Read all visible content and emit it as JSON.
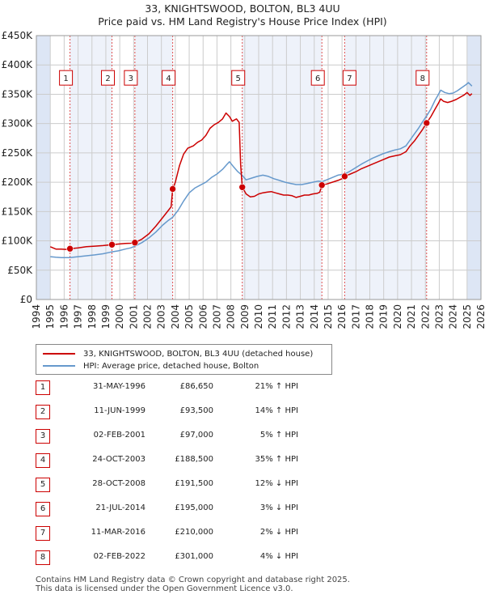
{
  "chart_data": {
    "type": "line",
    "title": "33, KNIGHTSWOOD, BOLTON, BL3 4UU",
    "subtitle": "Price paid vs. HM Land Registry's House Price Index (HPI)",
    "xlim": [
      1994,
      2026
    ],
    "ylim": [
      0,
      450000
    ],
    "x_ticks": [
      "1994",
      "1995",
      "1996",
      "1997",
      "1998",
      "1999",
      "2000",
      "2001",
      "2002",
      "2003",
      "2004",
      "2005",
      "2006",
      "2007",
      "2008",
      "2009",
      "2010",
      "2011",
      "2012",
      "2013",
      "2014",
      "2015",
      "2016",
      "2017",
      "2018",
      "2019",
      "2020",
      "2021",
      "2022",
      "2023",
      "2024",
      "2025",
      "2026"
    ],
    "y_ticks": [
      {
        "value": 0,
        "label": "£0"
      },
      {
        "value": 50000,
        "label": "£50K"
      },
      {
        "value": 100000,
        "label": "£100K"
      },
      {
        "value": 150000,
        "label": "£150K"
      },
      {
        "value": 200000,
        "label": "£200K"
      },
      {
        "value": 250000,
        "label": "£250K"
      },
      {
        "value": 300000,
        "label": "£300K"
      },
      {
        "value": 350000,
        "label": "£350K"
      },
      {
        "value": 400000,
        "label": "£400K"
      },
      {
        "value": 450000,
        "label": "£450K"
      }
    ],
    "colors": {
      "property": "#cc0000",
      "hpi": "#6699cc",
      "shade": "#dde6f5",
      "grid": "#cccccc"
    },
    "series": [
      {
        "name": "33, KNIGHTSWOOD, BOLTON, BL3 4UU (detached house)",
        "key": "property",
        "points": [
          [
            1995.0,
            90000
          ],
          [
            1995.4,
            86000
          ],
          [
            1995.8,
            86000
          ],
          [
            1996.1,
            85500
          ],
          [
            1996.42,
            86650
          ],
          [
            1997.0,
            88000
          ],
          [
            1997.6,
            90000
          ],
          [
            1998.2,
            91000
          ],
          [
            1998.8,
            92000
          ],
          [
            1999.44,
            93500
          ],
          [
            1999.9,
            94500
          ],
          [
            2000.4,
            95500
          ],
          [
            2000.8,
            96000
          ],
          [
            2001.09,
            97000
          ],
          [
            2001.6,
            103000
          ],
          [
            2002.1,
            112000
          ],
          [
            2002.6,
            125000
          ],
          [
            2003.1,
            140000
          ],
          [
            2003.5,
            152000
          ],
          [
            2003.7,
            158000
          ],
          [
            2003.81,
            188500
          ],
          [
            2004.0,
            200000
          ],
          [
            2004.3,
            228000
          ],
          [
            2004.6,
            248000
          ],
          [
            2004.9,
            258000
          ],
          [
            2005.3,
            262000
          ],
          [
            2005.6,
            268000
          ],
          [
            2005.9,
            272000
          ],
          [
            2006.2,
            280000
          ],
          [
            2006.5,
            292000
          ],
          [
            2006.8,
            298000
          ],
          [
            2007.1,
            302000
          ],
          [
            2007.4,
            308000
          ],
          [
            2007.65,
            318000
          ],
          [
            2007.9,
            312000
          ],
          [
            2008.1,
            304000
          ],
          [
            2008.4,
            308000
          ],
          [
            2008.6,
            302000
          ],
          [
            2008.7,
            230000
          ],
          [
            2008.82,
            191500
          ],
          [
            2009.1,
            180000
          ],
          [
            2009.4,
            175000
          ],
          [
            2009.7,
            176000
          ],
          [
            2010.0,
            180000
          ],
          [
            2010.3,
            182000
          ],
          [
            2010.6,
            183000
          ],
          [
            2010.9,
            184000
          ],
          [
            2011.2,
            182000
          ],
          [
            2011.5,
            180000
          ],
          [
            2011.8,
            178000
          ],
          [
            2012.1,
            178000
          ],
          [
            2012.4,
            177000
          ],
          [
            2012.7,
            174000
          ],
          [
            2013.0,
            176000
          ],
          [
            2013.3,
            178000
          ],
          [
            2013.6,
            178000
          ],
          [
            2013.9,
            180000
          ],
          [
            2014.2,
            181000
          ],
          [
            2014.4,
            183000
          ],
          [
            2014.55,
            195000
          ],
          [
            2014.9,
            197000
          ],
          [
            2015.3,
            200000
          ],
          [
            2015.7,
            203000
          ],
          [
            2016.0,
            206000
          ],
          [
            2016.19,
            210000
          ],
          [
            2016.6,
            214000
          ],
          [
            2017.0,
            218000
          ],
          [
            2017.4,
            223000
          ],
          [
            2017.8,
            227000
          ],
          [
            2018.2,
            231000
          ],
          [
            2018.6,
            235000
          ],
          [
            2019.0,
            239000
          ],
          [
            2019.4,
            243000
          ],
          [
            2019.8,
            245000
          ],
          [
            2020.2,
            247000
          ],
          [
            2020.6,
            252000
          ],
          [
            2020.9,
            262000
          ],
          [
            2021.2,
            270000
          ],
          [
            2021.5,
            280000
          ],
          [
            2021.8,
            290000
          ],
          [
            2022.09,
            301000
          ],
          [
            2022.4,
            312000
          ],
          [
            2022.7,
            325000
          ],
          [
            2022.9,
            333000
          ],
          [
            2023.1,
            342000
          ],
          [
            2023.3,
            338000
          ],
          [
            2023.6,
            336000
          ],
          [
            2023.9,
            338000
          ],
          [
            2024.2,
            341000
          ],
          [
            2024.5,
            345000
          ],
          [
            2024.8,
            349000
          ],
          [
            2025.0,
            353000
          ],
          [
            2025.2,
            348000
          ],
          [
            2025.35,
            351000
          ]
        ]
      },
      {
        "name": "HPI: Average price, detached house, Bolton",
        "key": "hpi",
        "points": [
          [
            1995.0,
            73000
          ],
          [
            1995.4,
            72000
          ],
          [
            1995.8,
            71500
          ],
          [
            1996.4,
            71500
          ],
          [
            1997.0,
            73000
          ],
          [
            1997.6,
            74500
          ],
          [
            1998.2,
            76000
          ],
          [
            1998.8,
            78000
          ],
          [
            1999.4,
            81000
          ],
          [
            1999.9,
            83000
          ],
          [
            2000.4,
            86000
          ],
          [
            2000.8,
            88000
          ],
          [
            2001.1,
            91000
          ],
          [
            2001.6,
            97000
          ],
          [
            2002.1,
            105000
          ],
          [
            2002.6,
            115000
          ],
          [
            2003.1,
            127000
          ],
          [
            2003.5,
            135000
          ],
          [
            2003.8,
            140000
          ],
          [
            2004.2,
            152000
          ],
          [
            2004.6,
            168000
          ],
          [
            2005.0,
            182000
          ],
          [
            2005.4,
            190000
          ],
          [
            2005.8,
            195000
          ],
          [
            2006.2,
            200000
          ],
          [
            2006.6,
            208000
          ],
          [
            2007.0,
            214000
          ],
          [
            2007.4,
            222000
          ],
          [
            2007.7,
            230000
          ],
          [
            2007.9,
            235000
          ],
          [
            2008.2,
            226000
          ],
          [
            2008.5,
            218000
          ],
          [
            2008.8,
            212000
          ],
          [
            2009.1,
            204000
          ],
          [
            2009.5,
            207000
          ],
          [
            2009.9,
            210000
          ],
          [
            2010.3,
            212000
          ],
          [
            2010.7,
            210000
          ],
          [
            2011.1,
            206000
          ],
          [
            2011.5,
            203000
          ],
          [
            2011.9,
            200000
          ],
          [
            2012.3,
            198000
          ],
          [
            2012.7,
            196000
          ],
          [
            2013.1,
            196000
          ],
          [
            2013.5,
            198000
          ],
          [
            2013.9,
            200000
          ],
          [
            2014.3,
            202000
          ],
          [
            2014.55,
            201000
          ],
          [
            2014.9,
            204000
          ],
          [
            2015.3,
            208000
          ],
          [
            2015.7,
            212000
          ],
          [
            2016.19,
            214000
          ],
          [
            2016.6,
            219000
          ],
          [
            2017.0,
            225000
          ],
          [
            2017.4,
            231000
          ],
          [
            2017.8,
            236000
          ],
          [
            2018.2,
            241000
          ],
          [
            2018.6,
            245000
          ],
          [
            2019.0,
            249000
          ],
          [
            2019.4,
            252000
          ],
          [
            2019.8,
            255000
          ],
          [
            2020.2,
            257000
          ],
          [
            2020.6,
            262000
          ],
          [
            2020.9,
            272000
          ],
          [
            2021.2,
            282000
          ],
          [
            2021.5,
            292000
          ],
          [
            2021.8,
            303000
          ],
          [
            2022.09,
            313000
          ],
          [
            2022.4,
            325000
          ],
          [
            2022.7,
            340000
          ],
          [
            2022.9,
            348000
          ],
          [
            2023.1,
            357000
          ],
          [
            2023.4,
            353000
          ],
          [
            2023.7,
            351000
          ],
          [
            2024.0,
            352000
          ],
          [
            2024.3,
            356000
          ],
          [
            2024.6,
            361000
          ],
          [
            2024.9,
            366000
          ],
          [
            2025.1,
            370000
          ],
          [
            2025.35,
            364000
          ]
        ]
      }
    ],
    "sale_markers": [
      {
        "n": "1",
        "x": 1996.42,
        "y": 86650
      },
      {
        "n": "2",
        "x": 1999.44,
        "y": 93500
      },
      {
        "n": "3",
        "x": 2001.09,
        "y": 97000
      },
      {
        "n": "4",
        "x": 2003.81,
        "y": 188500
      },
      {
        "n": "5",
        "x": 2008.82,
        "y": 191500
      },
      {
        "n": "6",
        "x": 2014.55,
        "y": 195000
      },
      {
        "n": "7",
        "x": 2016.19,
        "y": 210000
      },
      {
        "n": "8",
        "x": 2022.09,
        "y": 301000
      }
    ],
    "label_box_value": 378000,
    "shaded_ranges": [
      [
        1994,
        1995.0
      ],
      [
        2025.0,
        2026
      ]
    ]
  },
  "legend": {
    "property_label": "33, KNIGHTSWOOD, BOLTON, BL3 4UU (detached house)",
    "hpi_label": "HPI: Average price, detached house, Bolton"
  },
  "sales": [
    {
      "n": "1",
      "date": "31-MAY-1996",
      "price": "£86,650",
      "hpi": "21% ↑ HPI"
    },
    {
      "n": "2",
      "date": "11-JUN-1999",
      "price": "£93,500",
      "hpi": "14% ↑ HPI"
    },
    {
      "n": "3",
      "date": "02-FEB-2001",
      "price": "£97,000",
      "hpi": "5% ↑ HPI"
    },
    {
      "n": "4",
      "date": "24-OCT-2003",
      "price": "£188,500",
      "hpi": "35% ↑ HPI"
    },
    {
      "n": "5",
      "date": "28-OCT-2008",
      "price": "£191,500",
      "hpi": "12% ↓ HPI"
    },
    {
      "n": "6",
      "date": "21-JUL-2014",
      "price": "£195,000",
      "hpi": "3% ↓ HPI"
    },
    {
      "n": "7",
      "date": "11-MAR-2016",
      "price": "£210,000",
      "hpi": "2% ↓ HPI"
    },
    {
      "n": "8",
      "date": "02-FEB-2022",
      "price": "£301,000",
      "hpi": "4% ↓ HPI"
    }
  ],
  "footer": {
    "line1": "Contains HM Land Registry data © Crown copyright and database right 2025.",
    "line2": "This data is licensed under the Open Government Licence v3.0."
  }
}
